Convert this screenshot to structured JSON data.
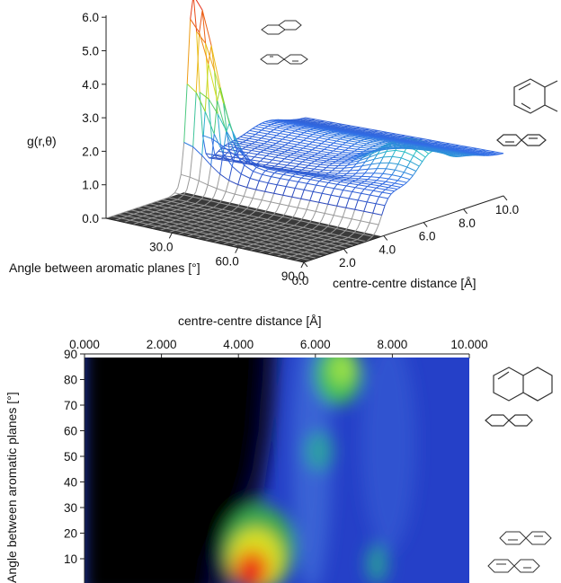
{
  "chart_data": [
    {
      "type": "surface",
      "zlabel": "g(r,θ)",
      "xlabel": "centre-centre distance [Å]",
      "ylabel": "Angle between aromatic planes [°]",
      "zticks": [
        "0.0",
        "1.0",
        "2.0",
        "3.0",
        "4.0",
        "5.0",
        "6.0"
      ],
      "xticks": [
        "0.0",
        "2.0",
        "4.0",
        "6.0",
        "8.0",
        "10.0"
      ],
      "yticks": [
        "30.0",
        "60.0",
        "90.0"
      ],
      "xlim": [
        0,
        10
      ],
      "ylim": [
        0,
        90
      ],
      "zlim": [
        0,
        6
      ],
      "peaks": [
        {
          "r": 4.3,
          "theta": 5,
          "g": 5.9
        },
        {
          "r": 6.6,
          "theta": 82,
          "g": 2.6
        },
        {
          "r": 7.5,
          "theta": 45,
          "g": 1.8
        }
      ]
    },
    {
      "type": "heatmap",
      "xlabel": "centre-centre distance [Å]",
      "ylabel": "Angle between aromatic planes [°]",
      "xticks": [
        "0.000",
        "2.000",
        "4.000",
        "6.000",
        "8.000",
        "10.000"
      ],
      "yticks": [
        "10",
        "20",
        "30",
        "40",
        "50",
        "60",
        "70",
        "80",
        "90"
      ],
      "xlim": [
        0,
        10
      ],
      "ylim": [
        0,
        90
      ],
      "colorscale": [
        "#000000",
        "#0a1a8a",
        "#2a45c8",
        "#2faa6a",
        "#8fe03a",
        "#f4e020",
        "#f07010",
        "#e8101e"
      ],
      "hotspots": [
        {
          "r": 4.3,
          "theta": 6,
          "level": "red"
        },
        {
          "r": 6.6,
          "theta": 84,
          "level": "green"
        },
        {
          "r": 6.1,
          "theta": 55,
          "level": "cyan"
        }
      ]
    }
  ]
}
